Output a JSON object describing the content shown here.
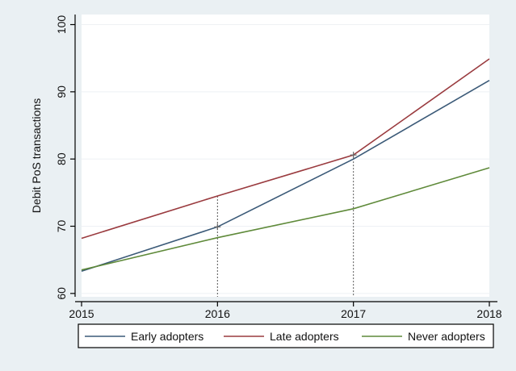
{
  "chart_data": {
    "type": "line",
    "title": "",
    "xlabel": "",
    "ylabel": "Debit PoS transactions",
    "x": [
      2015,
      2016,
      2017,
      2018
    ],
    "x_ticks": [
      "2015",
      "2016",
      "2017",
      "2018"
    ],
    "y_ticks": [
      "60",
      "70",
      "80",
      "90",
      "100"
    ],
    "xlim": [
      2015,
      2018
    ],
    "ylim": [
      59.5,
      101.5
    ],
    "grid": true,
    "legend_position": "bottom",
    "series": [
      {
        "name": "Early adopters",
        "color": "#3b5a78",
        "values": [
          63.3,
          69.9,
          80.0,
          91.7
        ]
      },
      {
        "name": "Late adopters",
        "color": "#9a3b3f",
        "values": [
          68.2,
          74.5,
          80.6,
          94.9
        ]
      },
      {
        "name": "Never adopters",
        "color": "#5f8a3a",
        "values": [
          63.5,
          68.3,
          72.6,
          78.7
        ]
      }
    ],
    "reference_lines_x": [
      2016,
      2017
    ]
  }
}
